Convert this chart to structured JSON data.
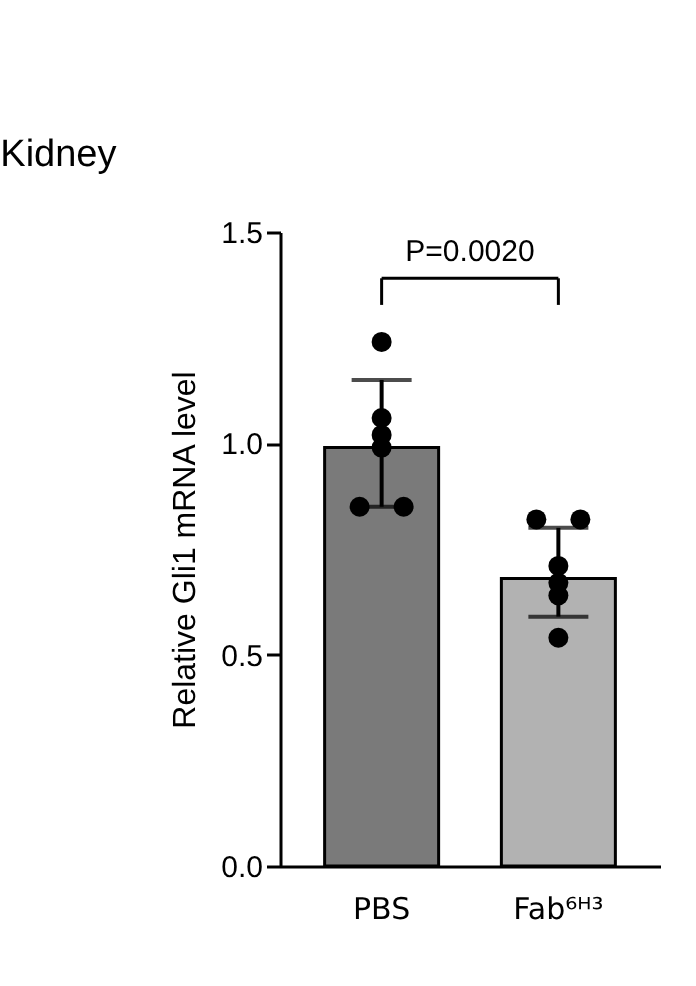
{
  "chart_data": {
    "type": "bar",
    "title": "Kidney",
    "ylabel": "Relative Gli1 mRNA level",
    "categories": [
      "PBS",
      "Fab⁶ᴴ³"
    ],
    "values": [
      0.99,
      0.68
    ],
    "colors": [
      "#7a7a7a",
      "#b2b2b2"
    ],
    "errors": [
      [
        0.85,
        1.15
      ],
      [
        0.59,
        0.8
      ]
    ],
    "series": [
      {
        "type": "scatter",
        "color": "#000000",
        "marker": "circle",
        "x": [
          "PBS",
          "PBS",
          "PBS",
          "PBS",
          "PBS",
          "PBS",
          "Fab⁶ᴴ³",
          "Fab⁶ᴴ³",
          "Fab⁶ᴴ³",
          "Fab⁶ᴴ³",
          "Fab⁶ᴴ³",
          "Fab⁶ᴴ³"
        ],
        "values": [
          1.24,
          1.06,
          1.02,
          0.99,
          0.85,
          0.85,
          0.82,
          0.82,
          0.71,
          0.67,
          0.64,
          0.54
        ]
      }
    ],
    "annotations": [
      "P=0.0020"
    ],
    "ylim": [
      0,
      1.5
    ],
    "yticks": [
      {
        "value": 0,
        "label": "0.0"
      },
      {
        "value": 0.5,
        "label": "0.5"
      },
      {
        "value": 1,
        "label": "1.0"
      },
      {
        "value": 1.5,
        "label": "1.5"
      }
    ],
    "grid": false
  }
}
